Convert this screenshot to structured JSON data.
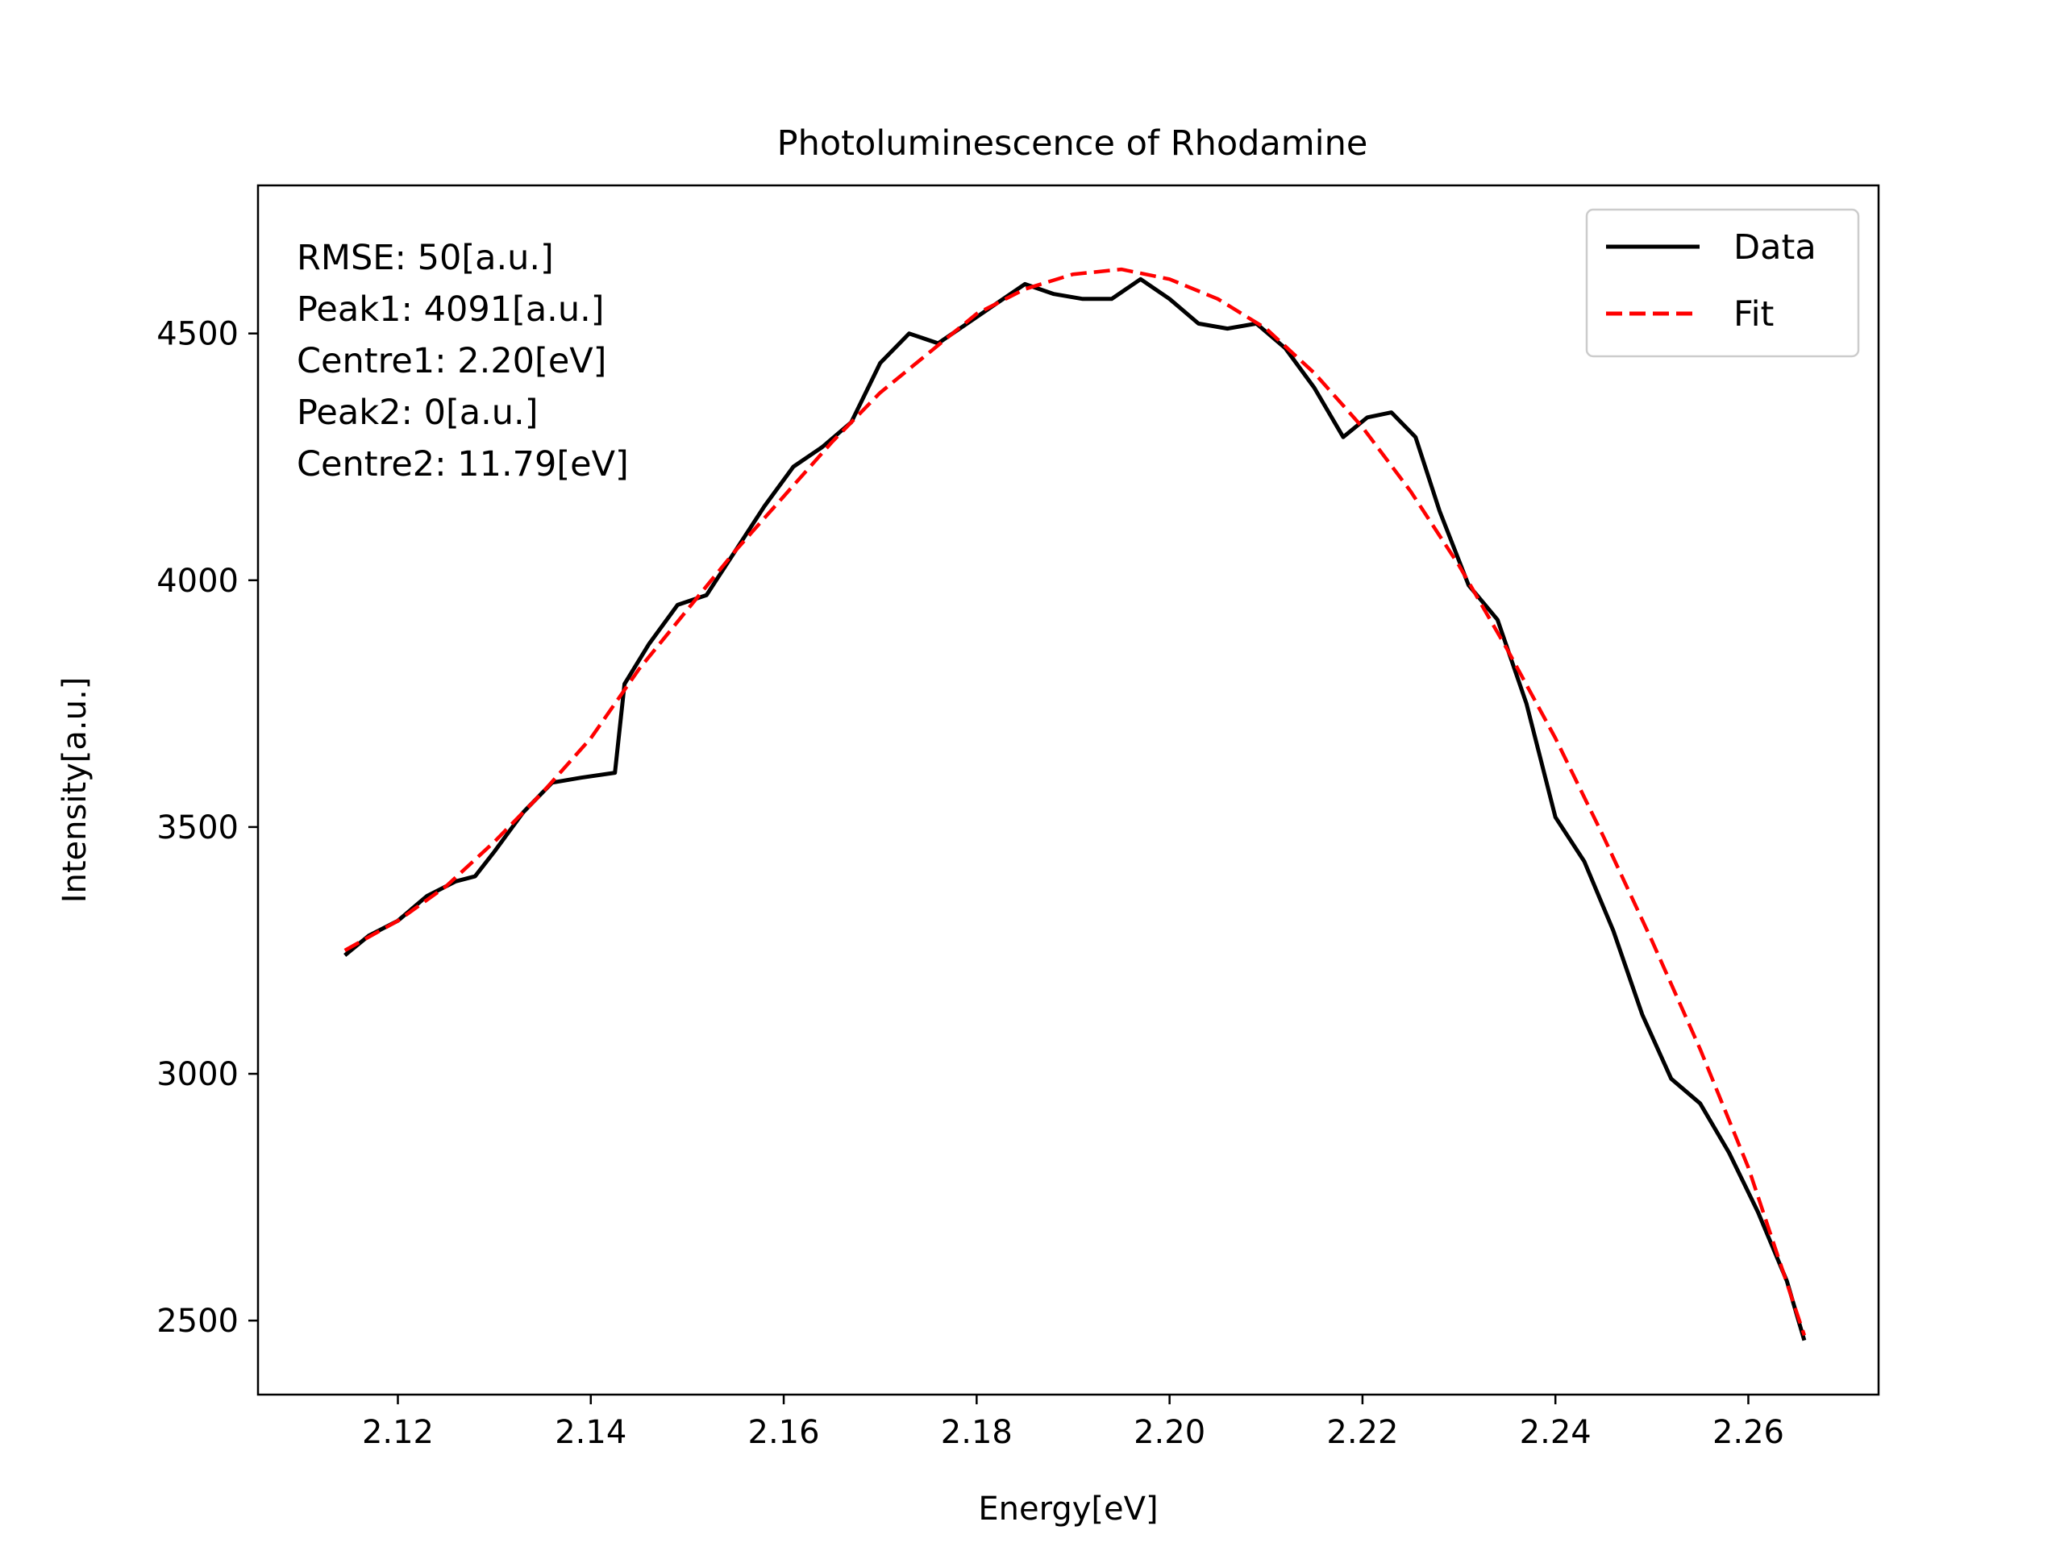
{
  "chart_data": {
    "type": "line",
    "title": "Photoluminescence of Rhodamine",
    "xlabel": "Energy[eV]",
    "ylabel": "Intensity[a.u.]",
    "xlim": [
      2.1055,
      2.2735
    ],
    "ylim": [
      2350,
      4800
    ],
    "xticks": [
      2.12,
      2.14,
      2.16,
      2.18,
      2.2,
      2.22,
      2.24,
      2.26
    ],
    "xtick_labels": [
      "2.12",
      "2.14",
      "2.16",
      "2.18",
      "2.20",
      "2.22",
      "2.24",
      "2.26"
    ],
    "yticks": [
      2500,
      3000,
      3500,
      4000,
      4500
    ],
    "ytick_labels": [
      "2500",
      "3000",
      "3500",
      "4000",
      "4500"
    ],
    "grid": false,
    "legend": {
      "position": "top-right",
      "entries": [
        {
          "label": "Data",
          "color": "#000000",
          "style": "solid"
        },
        {
          "label": "Fit",
          "color": "#ff0000",
          "style": "dashed"
        }
      ]
    },
    "annotations": [
      "RMSE: 50[a.u.]",
      "Peak1: 4091[a.u.]",
      "Centre1: 2.20[eV]",
      "Peak2: 0[a.u.]",
      "Centre2: 11.79[eV]"
    ],
    "series": [
      {
        "name": "Data",
        "color": "#000000",
        "style": "solid",
        "x": [
          2.1145,
          2.117,
          2.12,
          2.123,
          2.126,
          2.128,
          2.13,
          2.133,
          2.136,
          2.139,
          2.1425,
          2.1435,
          2.146,
          2.149,
          2.152,
          2.155,
          2.158,
          2.161,
          2.164,
          2.167,
          2.17,
          2.173,
          2.176,
          2.179,
          2.182,
          2.185,
          2.188,
          2.191,
          2.194,
          2.197,
          2.2,
          2.203,
          2.206,
          2.209,
          2.212,
          2.215,
          2.218,
          2.2205,
          2.223,
          2.2255,
          2.228,
          2.231,
          2.234,
          2.237,
          2.24,
          2.243,
          2.246,
          2.249,
          2.252,
          2.255,
          2.258,
          2.261,
          2.264,
          2.2658
        ],
        "y": [
          3240,
          3280,
          3310,
          3360,
          3390,
          3400,
          3450,
          3530,
          3590,
          3600,
          3610,
          3790,
          3870,
          3950,
          3970,
          4060,
          4150,
          4230,
          4270,
          4320,
          4440,
          4500,
          4480,
          4520,
          4560,
          4600,
          4580,
          4570,
          4570,
          4610,
          4570,
          4520,
          4510,
          4520,
          4470,
          4390,
          4290,
          4330,
          4340,
          4290,
          4140,
          3990,
          3920,
          3750,
          3520,
          3430,
          3290,
          3120,
          2990,
          2940,
          2840,
          2720,
          2580,
          2460
        ]
      },
      {
        "name": "Fit",
        "color": "#ff0000",
        "style": "dashed",
        "x": [
          2.1145,
          2.12,
          2.125,
          2.13,
          2.135,
          2.14,
          2.145,
          2.15,
          2.155,
          2.16,
          2.165,
          2.17,
          2.175,
          2.18,
          2.185,
          2.19,
          2.195,
          2.2,
          2.205,
          2.21,
          2.215,
          2.22,
          2.225,
          2.23,
          2.235,
          2.24,
          2.245,
          2.25,
          2.255,
          2.26,
          2.2658
        ],
        "y": [
          3250,
          3310,
          3380,
          3470,
          3570,
          3680,
          3820,
          3940,
          4060,
          4170,
          4280,
          4380,
          4460,
          4540,
          4590,
          4620,
          4630,
          4610,
          4570,
          4510,
          4420,
          4310,
          4180,
          4030,
          3860,
          3680,
          3480,
          3270,
          3050,
          2810,
          2470
        ]
      }
    ]
  }
}
